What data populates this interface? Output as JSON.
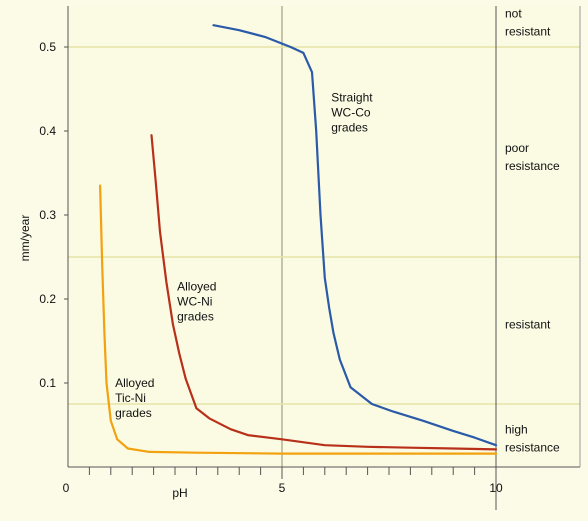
{
  "chart_data": {
    "type": "line",
    "title": "",
    "xlabel": "pH",
    "ylabel": "mm/year",
    "xlim": [
      0,
      10
    ],
    "ylim": [
      0,
      0.55
    ],
    "x_ticks": [
      {
        "value": 0,
        "label": "0"
      },
      {
        "value": 5,
        "label": "5"
      },
      {
        "value": 10,
        "label": "10"
      }
    ],
    "y_ticks": [
      {
        "value": 0.1,
        "label": "0.1"
      },
      {
        "value": 0.2,
        "label": "0.2"
      },
      {
        "value": 0.3,
        "label": "0.3"
      },
      {
        "value": 0.4,
        "label": "0.4"
      },
      {
        "value": 0.5,
        "label": "0.5"
      }
    ],
    "resistance_zones": [
      {
        "lines": [
          "not",
          "resistant"
        ],
        "y": 0.535,
        "boundary_below": 0.5
      },
      {
        "lines": [
          "poor",
          "resistance"
        ],
        "y": 0.375,
        "boundary_below": 0.25
      },
      {
        "lines": [
          "resistant"
        ],
        "y": 0.165,
        "boundary_below": 0.075
      },
      {
        "lines": [
          "high",
          "resistance"
        ],
        "y": 0.04,
        "boundary_below": null
      }
    ],
    "series": [
      {
        "color": "#f2a10f",
        "label_lines": [
          "Alloyed",
          "Tic-Ni",
          "grades"
        ],
        "label_pos": {
          "x": 1.1,
          "y": 0.095
        },
        "points": [
          [
            0.75,
            0.335
          ],
          [
            0.8,
            0.24
          ],
          [
            0.85,
            0.16
          ],
          [
            0.9,
            0.1
          ],
          [
            1.0,
            0.055
          ],
          [
            1.15,
            0.033
          ],
          [
            1.4,
            0.022
          ],
          [
            1.9,
            0.018
          ],
          [
            3,
            0.017
          ],
          [
            5,
            0.016
          ],
          [
            7,
            0.016
          ],
          [
            10,
            0.016
          ]
        ]
      },
      {
        "color": "#b8301a",
        "label_lines": [
          "Alloyed",
          "WC-Ni",
          "grades"
        ],
        "label_pos": {
          "x": 2.55,
          "y": 0.21
        },
        "points": [
          [
            1.95,
            0.395
          ],
          [
            2.05,
            0.34
          ],
          [
            2.15,
            0.28
          ],
          [
            2.3,
            0.22
          ],
          [
            2.45,
            0.17
          ],
          [
            2.6,
            0.135
          ],
          [
            2.75,
            0.105
          ],
          [
            3.0,
            0.07
          ],
          [
            3.3,
            0.058
          ],
          [
            3.8,
            0.045
          ],
          [
            4.2,
            0.038
          ],
          [
            5,
            0.033
          ],
          [
            6,
            0.026
          ],
          [
            7,
            0.024
          ],
          [
            8,
            0.023
          ],
          [
            9,
            0.022
          ],
          [
            10,
            0.021
          ]
        ]
      },
      {
        "color": "#2a5aa8",
        "label_lines": [
          "Straight",
          "WC-Co",
          "grades"
        ],
        "label_pos": {
          "x": 6.15,
          "y": 0.435
        },
        "points": [
          [
            3.4,
            0.526
          ],
          [
            4.0,
            0.52
          ],
          [
            4.6,
            0.512
          ],
          [
            5.2,
            0.5
          ],
          [
            5.5,
            0.493
          ],
          [
            5.7,
            0.47
          ],
          [
            5.8,
            0.4
          ],
          [
            5.9,
            0.3
          ],
          [
            6.0,
            0.225
          ],
          [
            6.1,
            0.19
          ],
          [
            6.2,
            0.16
          ],
          [
            6.35,
            0.128
          ],
          [
            6.6,
            0.095
          ],
          [
            7.1,
            0.075
          ],
          [
            7.6,
            0.066
          ],
          [
            8.3,
            0.055
          ],
          [
            9.0,
            0.043
          ],
          [
            9.5,
            0.035
          ],
          [
            10,
            0.026
          ]
        ]
      }
    ]
  }
}
